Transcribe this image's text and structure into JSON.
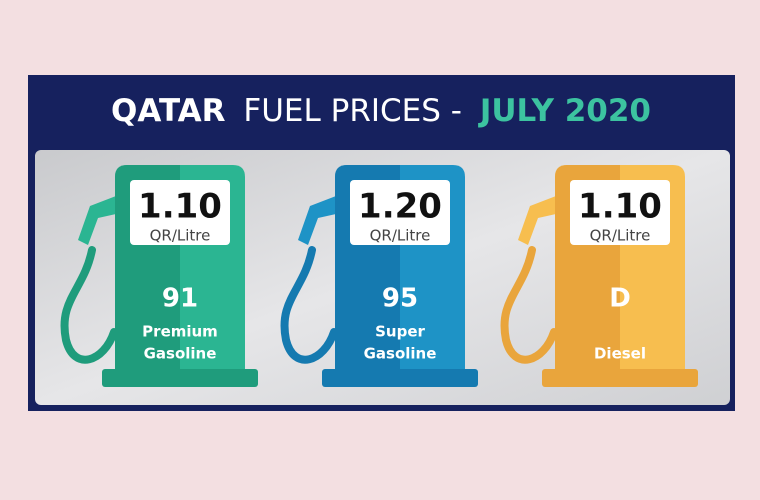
{
  "header": {
    "title_country": "QATAR",
    "title_main": "FUEL PRICES -",
    "title_date": "JULY 2020"
  },
  "pumps": [
    {
      "price": "1.10",
      "unit": "QR/Litre",
      "grade": "91",
      "name": [
        "Premium",
        "Gasoline"
      ],
      "color": "#2bb592",
      "shade": "#1f9c7c"
    },
    {
      "price": "1.20",
      "unit": "QR/Litre",
      "grade": "95",
      "name": [
        "Super",
        "Gasoline"
      ],
      "color": "#1e93c6",
      "shade": "#157ab0"
    },
    {
      "price": "1.10",
      "unit": "QR/Litre",
      "grade": "D",
      "name": [
        "Diesel"
      ],
      "color": "#f7be4f",
      "shade": "#e9a53c"
    }
  ]
}
